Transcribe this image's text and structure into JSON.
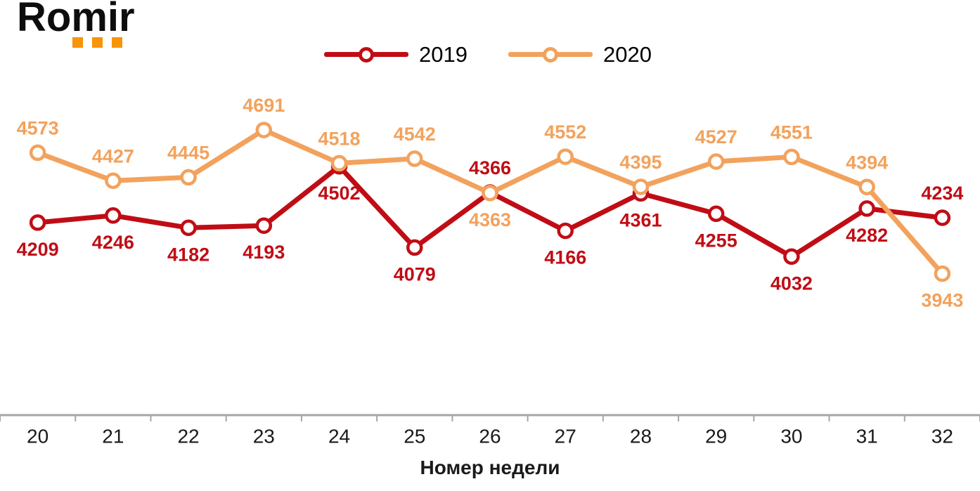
{
  "logo": {
    "text": "Romir",
    "accent_color": "#f89408"
  },
  "legend": {
    "items": [
      {
        "label": "2019",
        "color": "#c00d15"
      },
      {
        "label": "2020",
        "color": "#f2a25d"
      }
    ]
  },
  "chart_data": {
    "type": "line",
    "x": [
      20,
      21,
      22,
      23,
      24,
      25,
      26,
      27,
      28,
      29,
      30,
      31,
      32
    ],
    "xlabel": "Номер недели",
    "ylabel": "",
    "ylim": [
      3850,
      4750
    ],
    "grid": false,
    "legend_position": "top-center",
    "axis_color": "#a6a6a6",
    "tick_label_color": "#1a1a1a",
    "series": [
      {
        "name": "2019",
        "color": "#c00d15",
        "values": [
          4209,
          4246,
          4182,
          4193,
          4502,
          4079,
          4366,
          4166,
          4361,
          4255,
          4032,
          4282,
          4234
        ],
        "label_side": [
          "below",
          "below",
          "below",
          "below",
          "below",
          "below",
          "above",
          "below",
          "below",
          "below",
          "below",
          "below",
          "above"
        ]
      },
      {
        "name": "2020",
        "color": "#f2a25d",
        "values": [
          4573,
          4427,
          4445,
          4691,
          4518,
          4542,
          4363,
          4552,
          4395,
          4527,
          4551,
          4394,
          3943
        ],
        "label_side": [
          "above",
          "above",
          "above",
          "above",
          "above",
          "above",
          "below",
          "above",
          "above",
          "above",
          "above",
          "above",
          "below"
        ]
      }
    ]
  }
}
